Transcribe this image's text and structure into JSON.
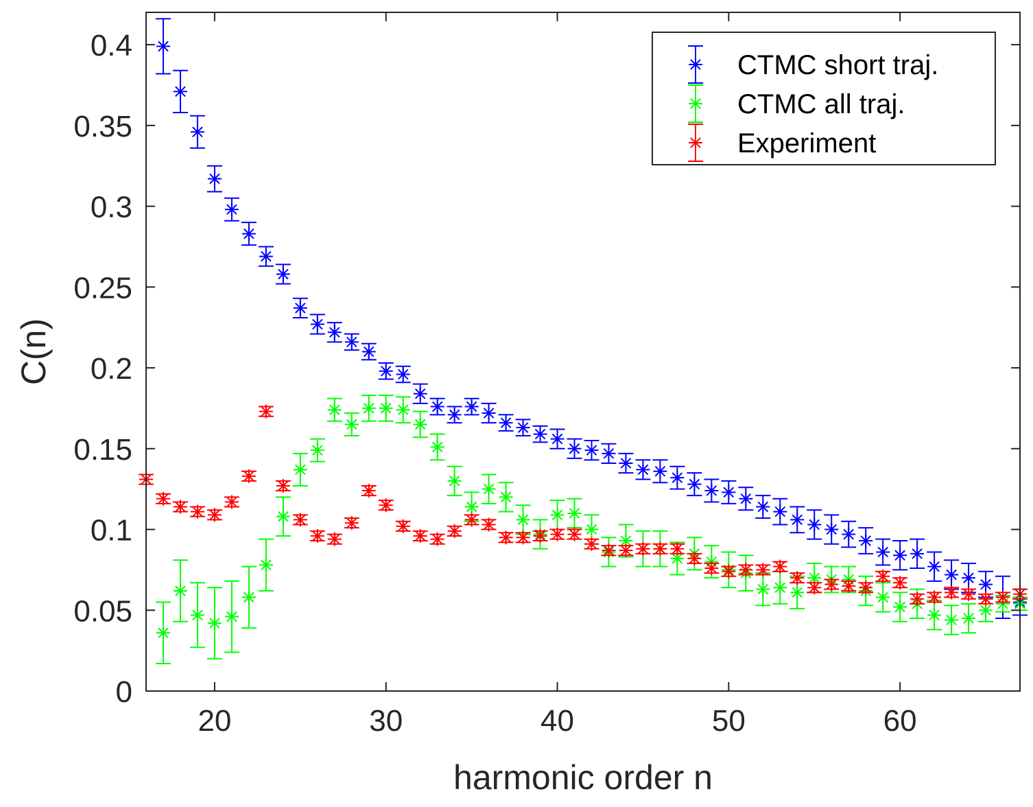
{
  "chart_data": {
    "type": "scatter",
    "title": "",
    "xlabel": "harmonic order n",
    "ylabel": "C(n)",
    "xlim": [
      16,
      67
    ],
    "ylim": [
      0,
      0.42
    ],
    "xticks": [
      20,
      30,
      40,
      50,
      60
    ],
    "yticks": [
      0,
      0.05,
      0.1,
      0.15,
      0.2,
      0.25,
      0.3,
      0.35,
      0.4
    ],
    "ytick_labels": [
      "0",
      "0.05",
      "0.1",
      "0.15",
      "0.2",
      "0.25",
      "0.3",
      "0.35",
      "0.4"
    ],
    "grid": false,
    "legend_position": "top-right",
    "marker": "asterisk with error bars",
    "series": [
      {
        "name": "CTMC short traj.",
        "color": "#0000ff",
        "x": [
          17,
          18,
          19,
          20,
          21,
          22,
          23,
          24,
          25,
          26,
          27,
          28,
          29,
          30,
          31,
          32,
          33,
          34,
          35,
          36,
          37,
          38,
          39,
          40,
          41,
          42,
          43,
          44,
          45,
          46,
          47,
          48,
          49,
          50,
          51,
          52,
          53,
          54,
          55,
          56,
          57,
          58,
          59,
          60,
          61,
          62,
          63,
          64,
          65,
          66,
          67
        ],
        "y": [
          0.399,
          0.371,
          0.346,
          0.317,
          0.298,
          0.283,
          0.269,
          0.258,
          0.237,
          0.227,
          0.222,
          0.216,
          0.21,
          0.198,
          0.196,
          0.184,
          0.176,
          0.171,
          0.176,
          0.172,
          0.166,
          0.163,
          0.159,
          0.156,
          0.15,
          0.149,
          0.147,
          0.141,
          0.137,
          0.136,
          0.132,
          0.128,
          0.124,
          0.123,
          0.119,
          0.114,
          0.111,
          0.106,
          0.103,
          0.1,
          0.097,
          0.093,
          0.086,
          0.084,
          0.085,
          0.077,
          0.072,
          0.07,
          0.066,
          0.058,
          0.055
        ],
        "err": [
          0.017,
          0.013,
          0.01,
          0.008,
          0.007,
          0.007,
          0.006,
          0.006,
          0.006,
          0.006,
          0.006,
          0.005,
          0.005,
          0.005,
          0.005,
          0.006,
          0.005,
          0.005,
          0.005,
          0.006,
          0.005,
          0.005,
          0.005,
          0.006,
          0.006,
          0.006,
          0.006,
          0.006,
          0.006,
          0.007,
          0.007,
          0.007,
          0.007,
          0.007,
          0.007,
          0.007,
          0.008,
          0.008,
          0.009,
          0.009,
          0.008,
          0.008,
          0.008,
          0.009,
          0.009,
          0.009,
          0.009,
          0.009,
          0.008,
          0.013,
          0.008
        ]
      },
      {
        "name": "CTMC all traj.",
        "color": "#00ff00",
        "x": [
          17,
          18,
          19,
          20,
          21,
          22,
          23,
          24,
          25,
          26,
          27,
          28,
          29,
          30,
          31,
          32,
          33,
          34,
          35,
          36,
          37,
          38,
          39,
          40,
          41,
          42,
          43,
          44,
          45,
          46,
          47,
          48,
          49,
          50,
          51,
          52,
          53,
          54,
          55,
          56,
          57,
          58,
          59,
          60,
          61,
          62,
          63,
          64,
          65,
          66,
          67
        ],
        "y": [
          0.036,
          0.062,
          0.047,
          0.042,
          0.046,
          0.058,
          0.078,
          0.108,
          0.137,
          0.149,
          0.174,
          0.165,
          0.175,
          0.175,
          0.174,
          0.165,
          0.151,
          0.13,
          0.114,
          0.125,
          0.12,
          0.106,
          0.097,
          0.109,
          0.11,
          0.1,
          0.086,
          0.093,
          0.088,
          0.088,
          0.082,
          0.085,
          0.08,
          0.075,
          0.073,
          0.063,
          0.064,
          0.061,
          0.07,
          0.069,
          0.069,
          0.062,
          0.058,
          0.052,
          0.054,
          0.047,
          0.044,
          0.045,
          0.05,
          0.054,
          0.054
        ],
        "err": [
          0.019,
          0.019,
          0.02,
          0.022,
          0.022,
          0.019,
          0.016,
          0.012,
          0.01,
          0.007,
          0.007,
          0.007,
          0.008,
          0.008,
          0.008,
          0.008,
          0.008,
          0.009,
          0.009,
          0.009,
          0.009,
          0.009,
          0.009,
          0.009,
          0.009,
          0.009,
          0.009,
          0.01,
          0.011,
          0.011,
          0.01,
          0.01,
          0.01,
          0.011,
          0.011,
          0.01,
          0.01,
          0.01,
          0.009,
          0.008,
          0.008,
          0.009,
          0.009,
          0.009,
          0.009,
          0.009,
          0.009,
          0.009,
          0.007,
          0.005,
          0.004
        ]
      },
      {
        "name": "Experiment",
        "color": "#ff0000",
        "x": [
          16,
          17,
          18,
          19,
          20,
          21,
          22,
          23,
          24,
          25,
          26,
          27,
          28,
          29,
          30,
          31,
          32,
          33,
          34,
          35,
          36,
          37,
          38,
          39,
          40,
          41,
          42,
          43,
          44,
          45,
          46,
          47,
          48,
          49,
          50,
          51,
          52,
          53,
          54,
          55,
          56,
          57,
          58,
          59,
          60,
          61,
          62,
          63,
          64,
          65,
          66,
          67
        ],
        "y": [
          0.131,
          0.119,
          0.114,
          0.111,
          0.109,
          0.117,
          0.133,
          0.173,
          0.127,
          0.106,
          0.096,
          0.094,
          0.104,
          0.124,
          0.115,
          0.102,
          0.096,
          0.094,
          0.099,
          0.106,
          0.103,
          0.095,
          0.095,
          0.096,
          0.097,
          0.097,
          0.091,
          0.087,
          0.087,
          0.088,
          0.088,
          0.088,
          0.082,
          0.076,
          0.074,
          0.075,
          0.075,
          0.077,
          0.07,
          0.064,
          0.066,
          0.065,
          0.064,
          0.071,
          0.067,
          0.057,
          0.058,
          0.061,
          0.06,
          0.057,
          0.058,
          0.06
        ],
        "err": [
          0.003,
          0.003,
          0.003,
          0.003,
          0.003,
          0.003,
          0.003,
          0.003,
          0.003,
          0.003,
          0.003,
          0.003,
          0.003,
          0.003,
          0.003,
          0.003,
          0.003,
          0.003,
          0.003,
          0.003,
          0.003,
          0.003,
          0.003,
          0.003,
          0.003,
          0.003,
          0.003,
          0.003,
          0.003,
          0.003,
          0.003,
          0.003,
          0.003,
          0.003,
          0.003,
          0.003,
          0.003,
          0.003,
          0.003,
          0.003,
          0.003,
          0.003,
          0.003,
          0.003,
          0.003,
          0.003,
          0.003,
          0.003,
          0.003,
          0.003,
          0.003,
          0.003
        ]
      }
    ]
  }
}
